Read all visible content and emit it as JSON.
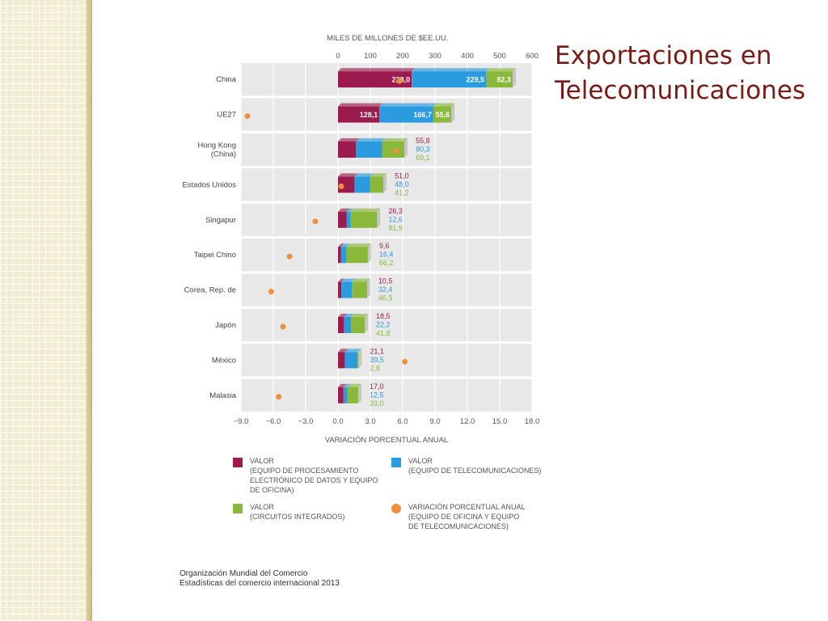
{
  "slide": {
    "title_line1": "Exportaciones en",
    "title_line2": "Telecomunicaciones"
  },
  "source": {
    "line1": "Organización Mundial del Comercio",
    "line2": "Estadísticas del comercio internacional 2013"
  },
  "colors": {
    "valor_procesamiento": "#9b1b4e",
    "valor_telecom": "#2b9be0",
    "valor_circuitos": "#8ab83a",
    "variacion": "#f0913a",
    "title": "#7a1a14",
    "panel": "#e8e8e8"
  },
  "chart_data": {
    "type": "bar",
    "stacked": true,
    "orientation": "horizontal",
    "top_axis": {
      "title": "MILES DE MILLONES DE $EE.UU.",
      "ticks": [
        "0",
        "100",
        "200",
        "300",
        "400",
        "500",
        "600"
      ],
      "range": [
        0,
        600
      ]
    },
    "bottom_axis": {
      "title": "VARIACIÓN PORCENTUAL ANUAL",
      "ticks": [
        "−9.0",
        "−6.0",
        "−3.0",
        "0.0",
        "3.0",
        "6.0",
        "9.0",
        "12.0",
        "15.0",
        "18.0"
      ],
      "range": [
        -9,
        18
      ]
    },
    "categories": [
      "China",
      "UE27",
      "Hong Kong\n(China)",
      "Estados Unidos",
      "Singapur",
      "Taipei Chino",
      "Corea, Rep. de",
      "Japón",
      "México",
      "Malasia"
    ],
    "series": [
      {
        "name": "VALOR\n(EQUIPO DE PROCESAMIENTO\nELECTRÓNICO DE DATOS Y EQUIPO\nDE OFICINA)",
        "key": "valor_procesamiento",
        "values": [
          228.0,
          128.1,
          55.8,
          51.0,
          26.3,
          9.6,
          10.5,
          18.5,
          21.1,
          17.0
        ],
        "labels": [
          "228,0",
          "128,1",
          "55,8",
          "51,0",
          "26,3",
          "9,6",
          "10,5",
          "18,5",
          "21,1",
          "17,0"
        ]
      },
      {
        "name": "VALOR\n(EQUIPO DE TELECOMUNICACIONES)",
        "key": "valor_telecom",
        "values": [
          229.5,
          166.7,
          80.3,
          48.0,
          12.6,
          16.4,
          32.4,
          22.2,
          39.5,
          12.5
        ],
        "labels": [
          "229,5",
          "166,7",
          "80,3",
          "48,0",
          "12,6",
          "16,4",
          "32,4",
          "22,2",
          "39,5",
          "12,5"
        ]
      },
      {
        "name": "VALOR\n(CIRCUITOS INTEGRADOS)",
        "key": "valor_circuitos",
        "values": [
          82.3,
          55.6,
          69.1,
          41.2,
          81.9,
          66.2,
          46.9,
          41.8,
          2.8,
          33.0
        ],
        "labels": [
          "82,3",
          "55,6",
          "69,1",
          "41,2",
          "81,9",
          "66,2",
          "46,9",
          "41,8",
          "2,8",
          "33,0"
        ]
      }
    ],
    "variacion": {
      "name": "VARIACIÓN PORCENTUAL ANUAL\n(EQUIPO DE OFICINA Y EQUIPO\nDE TELECOMUNICACIONES)",
      "key": "variacion",
      "values": [
        5.7,
        -8.4,
        5.4,
        0.3,
        -2.1,
        -4.5,
        -6.2,
        -5.1,
        6.2,
        -5.5
      ]
    }
  }
}
